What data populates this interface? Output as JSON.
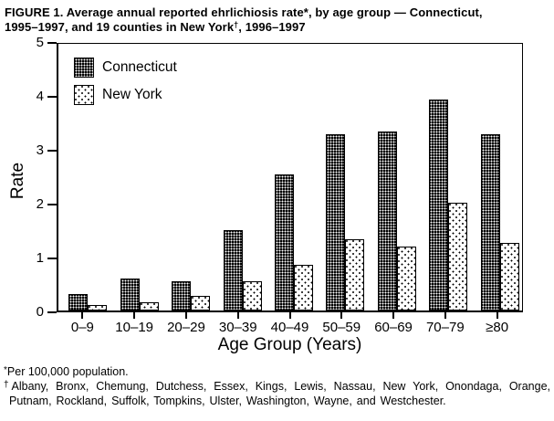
{
  "figure_title": {
    "line1": "FIGURE 1. Average annual reported ehrlichiosis rate*, by age group — Connecticut,",
    "line2_pre": "1995–1997, and 19 counties in New York",
    "line2_dagger": "†",
    "line2_post": ", 1996–1997"
  },
  "chart_data": {
    "type": "bar",
    "title": "Average annual reported ehrlichiosis rate, by age group — Connecticut, 1995–1997, and 19 counties in New York, 1996–1997",
    "categories": [
      "0–9",
      "10–19",
      "20–29",
      "30–39",
      "40–49",
      "50–59",
      "60–69",
      "70–79",
      "≥80"
    ],
    "series": [
      {
        "name": "Connecticut",
        "pattern": "black-with-white-dot-grid",
        "values": [
          0.3,
          0.6,
          0.55,
          1.5,
          2.55,
          3.3,
          3.35,
          3.95,
          3.3
        ]
      },
      {
        "name": "New York",
        "pattern": "white-with-black-dots",
        "values": [
          0.1,
          0.15,
          0.27,
          0.55,
          0.85,
          1.33,
          1.2,
          2.02,
          1.26
        ]
      }
    ],
    "xlabel": "Age Group (Years)",
    "ylabel": "Rate",
    "ylim": [
      0,
      5
    ],
    "yticks": [
      0,
      1,
      2,
      3,
      4,
      5
    ],
    "grid": false,
    "legend_position": "inside-top-left"
  },
  "legend": {
    "items": [
      {
        "label": "Connecticut",
        "swatch": "black-with-white-dot-grid"
      },
      {
        "label": "New York",
        "swatch": "white-with-black-dots"
      }
    ]
  },
  "footnotes": {
    "fn1_symbol": "*",
    "fn1_text": "Per 100,000 population.",
    "fn2_symbol": "†",
    "fn2_text": "Albany, Bronx, Chemung, Dutchess, Essex, Kings, Lewis, Nassau, New York, Onondaga, Orange, Putnam, Rockland, Suffolk, Tompkins, Ulster, Washington, Wayne, and Westchester."
  },
  "colors": {
    "foreground": "#000000",
    "background": "#ffffff"
  }
}
